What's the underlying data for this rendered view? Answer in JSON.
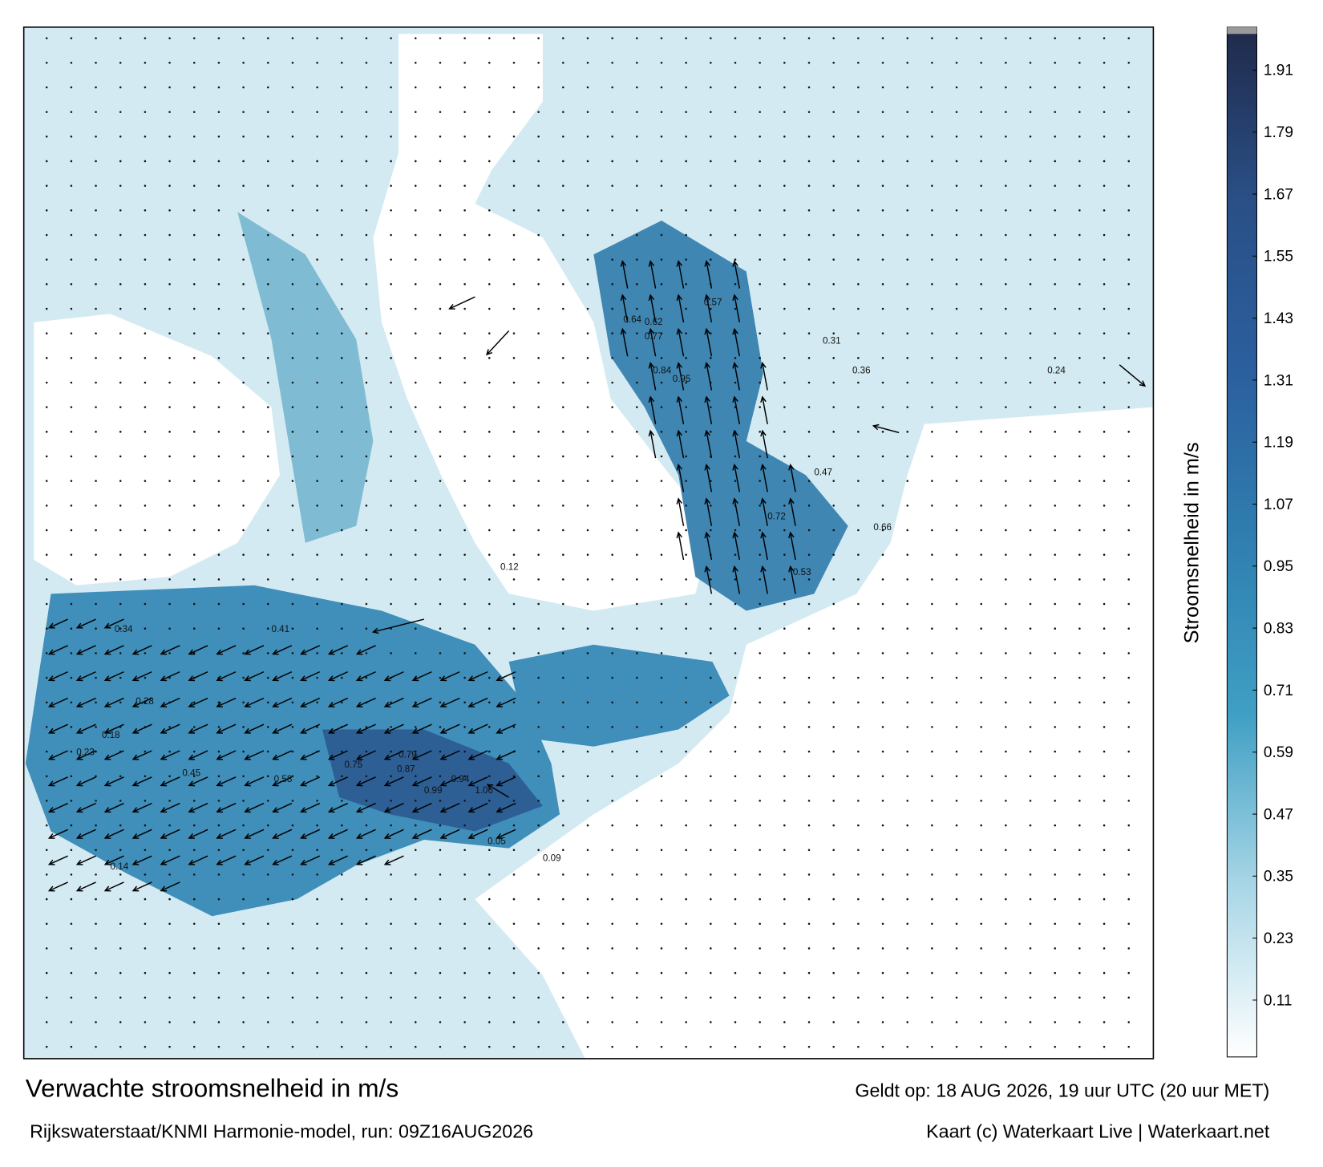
{
  "header": {
    "title": "Verwachte stroomsnelheid in m/s",
    "valid": "Geldt op: 18 AUG 2026, 19 uur UTC (20 uur MET)",
    "model": "Rijkswaterstaat/KNMI Harmonie-model, run: 09Z16AUG2026",
    "credit": "Kaart (c) Waterkaart Live | Waterkaart.net"
  },
  "colorbar": {
    "label": "Stroomsnelheid in m/s",
    "lim": [
      0,
      1.98
    ],
    "ticks": [
      0.11,
      0.23,
      0.35,
      0.47,
      0.59,
      0.71,
      0.83,
      0.95,
      1.07,
      1.19,
      1.31,
      1.43,
      1.55,
      1.67,
      1.79,
      1.91
    ],
    "colors": [
      "#ffffff",
      "#a8d6e6",
      "#3f9fc4",
      "#2f7fb0",
      "#2b5f9e",
      "#2a4f86",
      "#1f2a4a"
    ]
  },
  "labels": [
    0.77,
    0.84,
    0.95,
    0.64,
    0.62,
    0.57,
    0.72,
    0.66,
    0.53,
    0.47,
    0.31,
    0.36,
    0.24,
    1.06,
    0.99,
    0.94,
    0.87,
    0.79,
    0.75,
    0.58,
    0.45,
    0.41,
    0.34,
    0.28,
    0.23,
    0.18,
    0.14,
    0.09,
    0.05,
    0.12
  ]
}
